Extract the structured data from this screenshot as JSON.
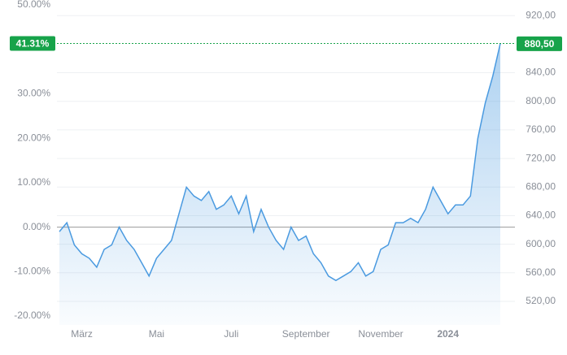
{
  "chart_data": {
    "type": "area",
    "categories": [
      null,
      null,
      null,
      "März",
      null,
      null,
      null,
      null,
      null,
      null,
      null,
      null,
      null,
      "Mai",
      null,
      null,
      null,
      null,
      null,
      null,
      null,
      null,
      null,
      "Juli",
      null,
      null,
      null,
      null,
      null,
      null,
      null,
      null,
      null,
      "September",
      null,
      null,
      null,
      null,
      null,
      null,
      null,
      null,
      null,
      "November",
      null,
      null,
      null,
      null,
      null,
      null,
      null,
      null,
      "2024",
      null,
      null,
      null,
      null,
      null,
      null,
      null
    ],
    "series": [
      {
        "color": "#4a9ae0",
        "values": [
          -1,
          1,
          -4,
          -6,
          -7,
          -9,
          -5,
          -4,
          0,
          -3,
          -5,
          -8,
          -11,
          -7,
          -5,
          -3,
          3,
          9,
          7,
          6,
          8,
          4,
          5,
          7,
          3,
          7,
          -1,
          4,
          0,
          -3,
          -5,
          0,
          -3,
          -2,
          -6,
          -8,
          -11,
          -12,
          -11,
          -10,
          -8,
          -11,
          -10,
          -5,
          -4,
          1,
          1,
          2,
          1,
          4,
          9,
          6,
          3,
          5,
          5,
          7,
          20,
          28,
          34,
          41.31
        ]
      }
    ],
    "ylim": [
      -22,
      50
    ],
    "yticks": [
      {
        "value": -20,
        "label": "-20.00%"
      },
      {
        "value": -10,
        "label": "-10.00%"
      },
      {
        "value": 0,
        "label": "0.00%"
      },
      {
        "value": 10,
        "label": "10.00%"
      },
      {
        "value": 20,
        "label": "20.00%"
      },
      {
        "value": 30,
        "label": "30.00%"
      },
      {
        "value": 50,
        "label": "50.00%"
      }
    ],
    "y2lim": [
      487,
      935
    ],
    "y2ticks": [
      {
        "value": 520,
        "label": "520,00"
      },
      {
        "value": 560,
        "label": "560,00"
      },
      {
        "value": 600,
        "label": "600,00"
      },
      {
        "value": 640,
        "label": "640,00"
      },
      {
        "value": 680,
        "label": "680,00"
      },
      {
        "value": 720,
        "label": "720,00"
      },
      {
        "value": 760,
        "label": "760,00"
      },
      {
        "value": 800,
        "label": "800,00"
      },
      {
        "value": 840,
        "label": "840,00"
      },
      {
        "value": 920,
        "label": "920,00"
      }
    ],
    "last_value": {
      "value": 41.31,
      "label": "41.31%"
    },
    "last_price": {
      "value": 880.5,
      "label": "880,50"
    },
    "grid": true
  }
}
